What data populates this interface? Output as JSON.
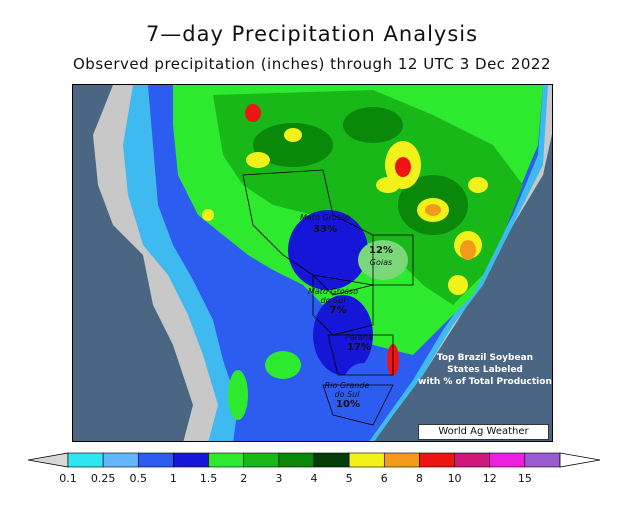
{
  "title": "7—day Precipitation Analysis",
  "subtitle": "Observed precipitation (inches) through 12 UTC 3 Dec 2022",
  "map": {
    "states": [
      {
        "name": "Mato Grosso",
        "pct": "33%"
      },
      {
        "name": "Goias",
        "pct": "12%"
      },
      {
        "name": "Mato Grosso\ndo Sul",
        "pct": "7%"
      },
      {
        "name": "Parana",
        "pct": "17%"
      },
      {
        "name": "Rio Grande\ndo Sul",
        "pct": "10%"
      }
    ],
    "note": [
      "Top Brazil Soybean",
      "States Labeled",
      "with % of Total Production"
    ],
    "credit": "World Ag Weather"
  },
  "legend": {
    "ticks": [
      "0.1",
      "0.25",
      "0.5",
      "1",
      "1.5",
      "2",
      "3",
      "4",
      "5",
      "6",
      "8",
      "10",
      "12",
      "15"
    ],
    "colors": [
      "#2ee6f0",
      "#62b6ff",
      "#2c5cf0",
      "#1616d8",
      "#2eea2e",
      "#18b818",
      "#0a880a",
      "#063c06",
      "#f2f21a",
      "#f49a1a",
      "#ee1414",
      "#d0167a",
      "#ee1ee0",
      "#9a5ad0"
    ],
    "under_color": "#d8d8d8",
    "over_color": "#ffffff"
  }
}
